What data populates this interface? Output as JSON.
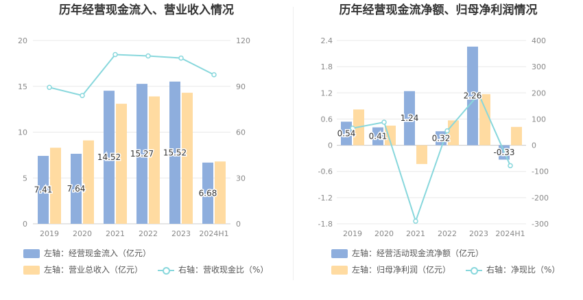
{
  "colors": {
    "bar_primary": "#8eaedd",
    "bar_secondary": "#ffdba1",
    "line": "#87d7dc",
    "grid": "#e8e8e8",
    "axis_text": "#888888",
    "label_text": "#333333"
  },
  "chart_data": [
    {
      "type": "bar",
      "title": "历年经营现金流入、营业收入情况",
      "categories": [
        "2019",
        "2020",
        "2021",
        "2022",
        "2023",
        "2024H1"
      ],
      "left_axis": {
        "ticks": [
          "0",
          "5",
          "10",
          "15",
          "20"
        ],
        "ylim": [
          0,
          20
        ]
      },
      "right_axis": {
        "ticks": [
          "0",
          "30",
          "60",
          "90",
          "120"
        ],
        "ylim": [
          0,
          120
        ]
      },
      "grid": true,
      "legend_position": "bottom-left",
      "series": [
        {
          "name": "左轴：经营现金流入（亿元）",
          "kind": "bar",
          "axis": "left",
          "values": [
            7.41,
            7.64,
            14.52,
            15.27,
            15.52,
            6.68
          ],
          "labels": [
            "7.41",
            "7.64",
            "14.52",
            "15.27",
            "15.52",
            "6.68"
          ]
        },
        {
          "name": "左轴：营业总收入（亿元）",
          "kind": "bar",
          "axis": "left",
          "values": [
            8.3,
            9.1,
            13.1,
            13.9,
            14.3,
            6.8
          ]
        },
        {
          "name": "右轴：营收现金比（%）",
          "kind": "line",
          "axis": "right",
          "values": [
            89.3,
            84.0,
            110.8,
            109.9,
            108.5,
            97.6
          ]
        }
      ]
    },
    {
      "type": "bar",
      "title": "历年经营现金流净额、归母净利润情况",
      "categories": [
        "2019",
        "2020",
        "2021",
        "2022",
        "2023",
        "2024H1"
      ],
      "left_axis": {
        "ticks": [
          "-1.8",
          "-1.2",
          "-0.6",
          "0",
          "0.6",
          "1.2",
          "1.8",
          "2.4"
        ],
        "ylim": [
          -1.8,
          2.4
        ]
      },
      "right_axis": {
        "ticks": [
          "-300",
          "-200",
          "-100",
          "0",
          "100",
          "200",
          "300",
          "400"
        ],
        "ylim": [
          -300,
          400
        ]
      },
      "grid": true,
      "legend_position": "bottom-left",
      "series": [
        {
          "name": "左轴：经营活动现金流净额（亿元）",
          "kind": "bar",
          "axis": "left",
          "values": [
            0.54,
            0.41,
            1.24,
            0.32,
            2.26,
            -0.33
          ],
          "labels": [
            "0.54",
            "0.41",
            "1.24",
            "0.32",
            "2.26",
            "-0.33"
          ]
        },
        {
          "name": "左轴：归母净利润（亿元）",
          "kind": "bar",
          "axis": "left",
          "values": [
            0.82,
            0.45,
            -0.43,
            0.57,
            1.17,
            0.42
          ]
        },
        {
          "name": "右轴：净现比（%）",
          "kind": "line",
          "axis": "right",
          "values": [
            65,
            88,
            -290,
            55,
            195,
            -78
          ]
        }
      ]
    }
  ]
}
